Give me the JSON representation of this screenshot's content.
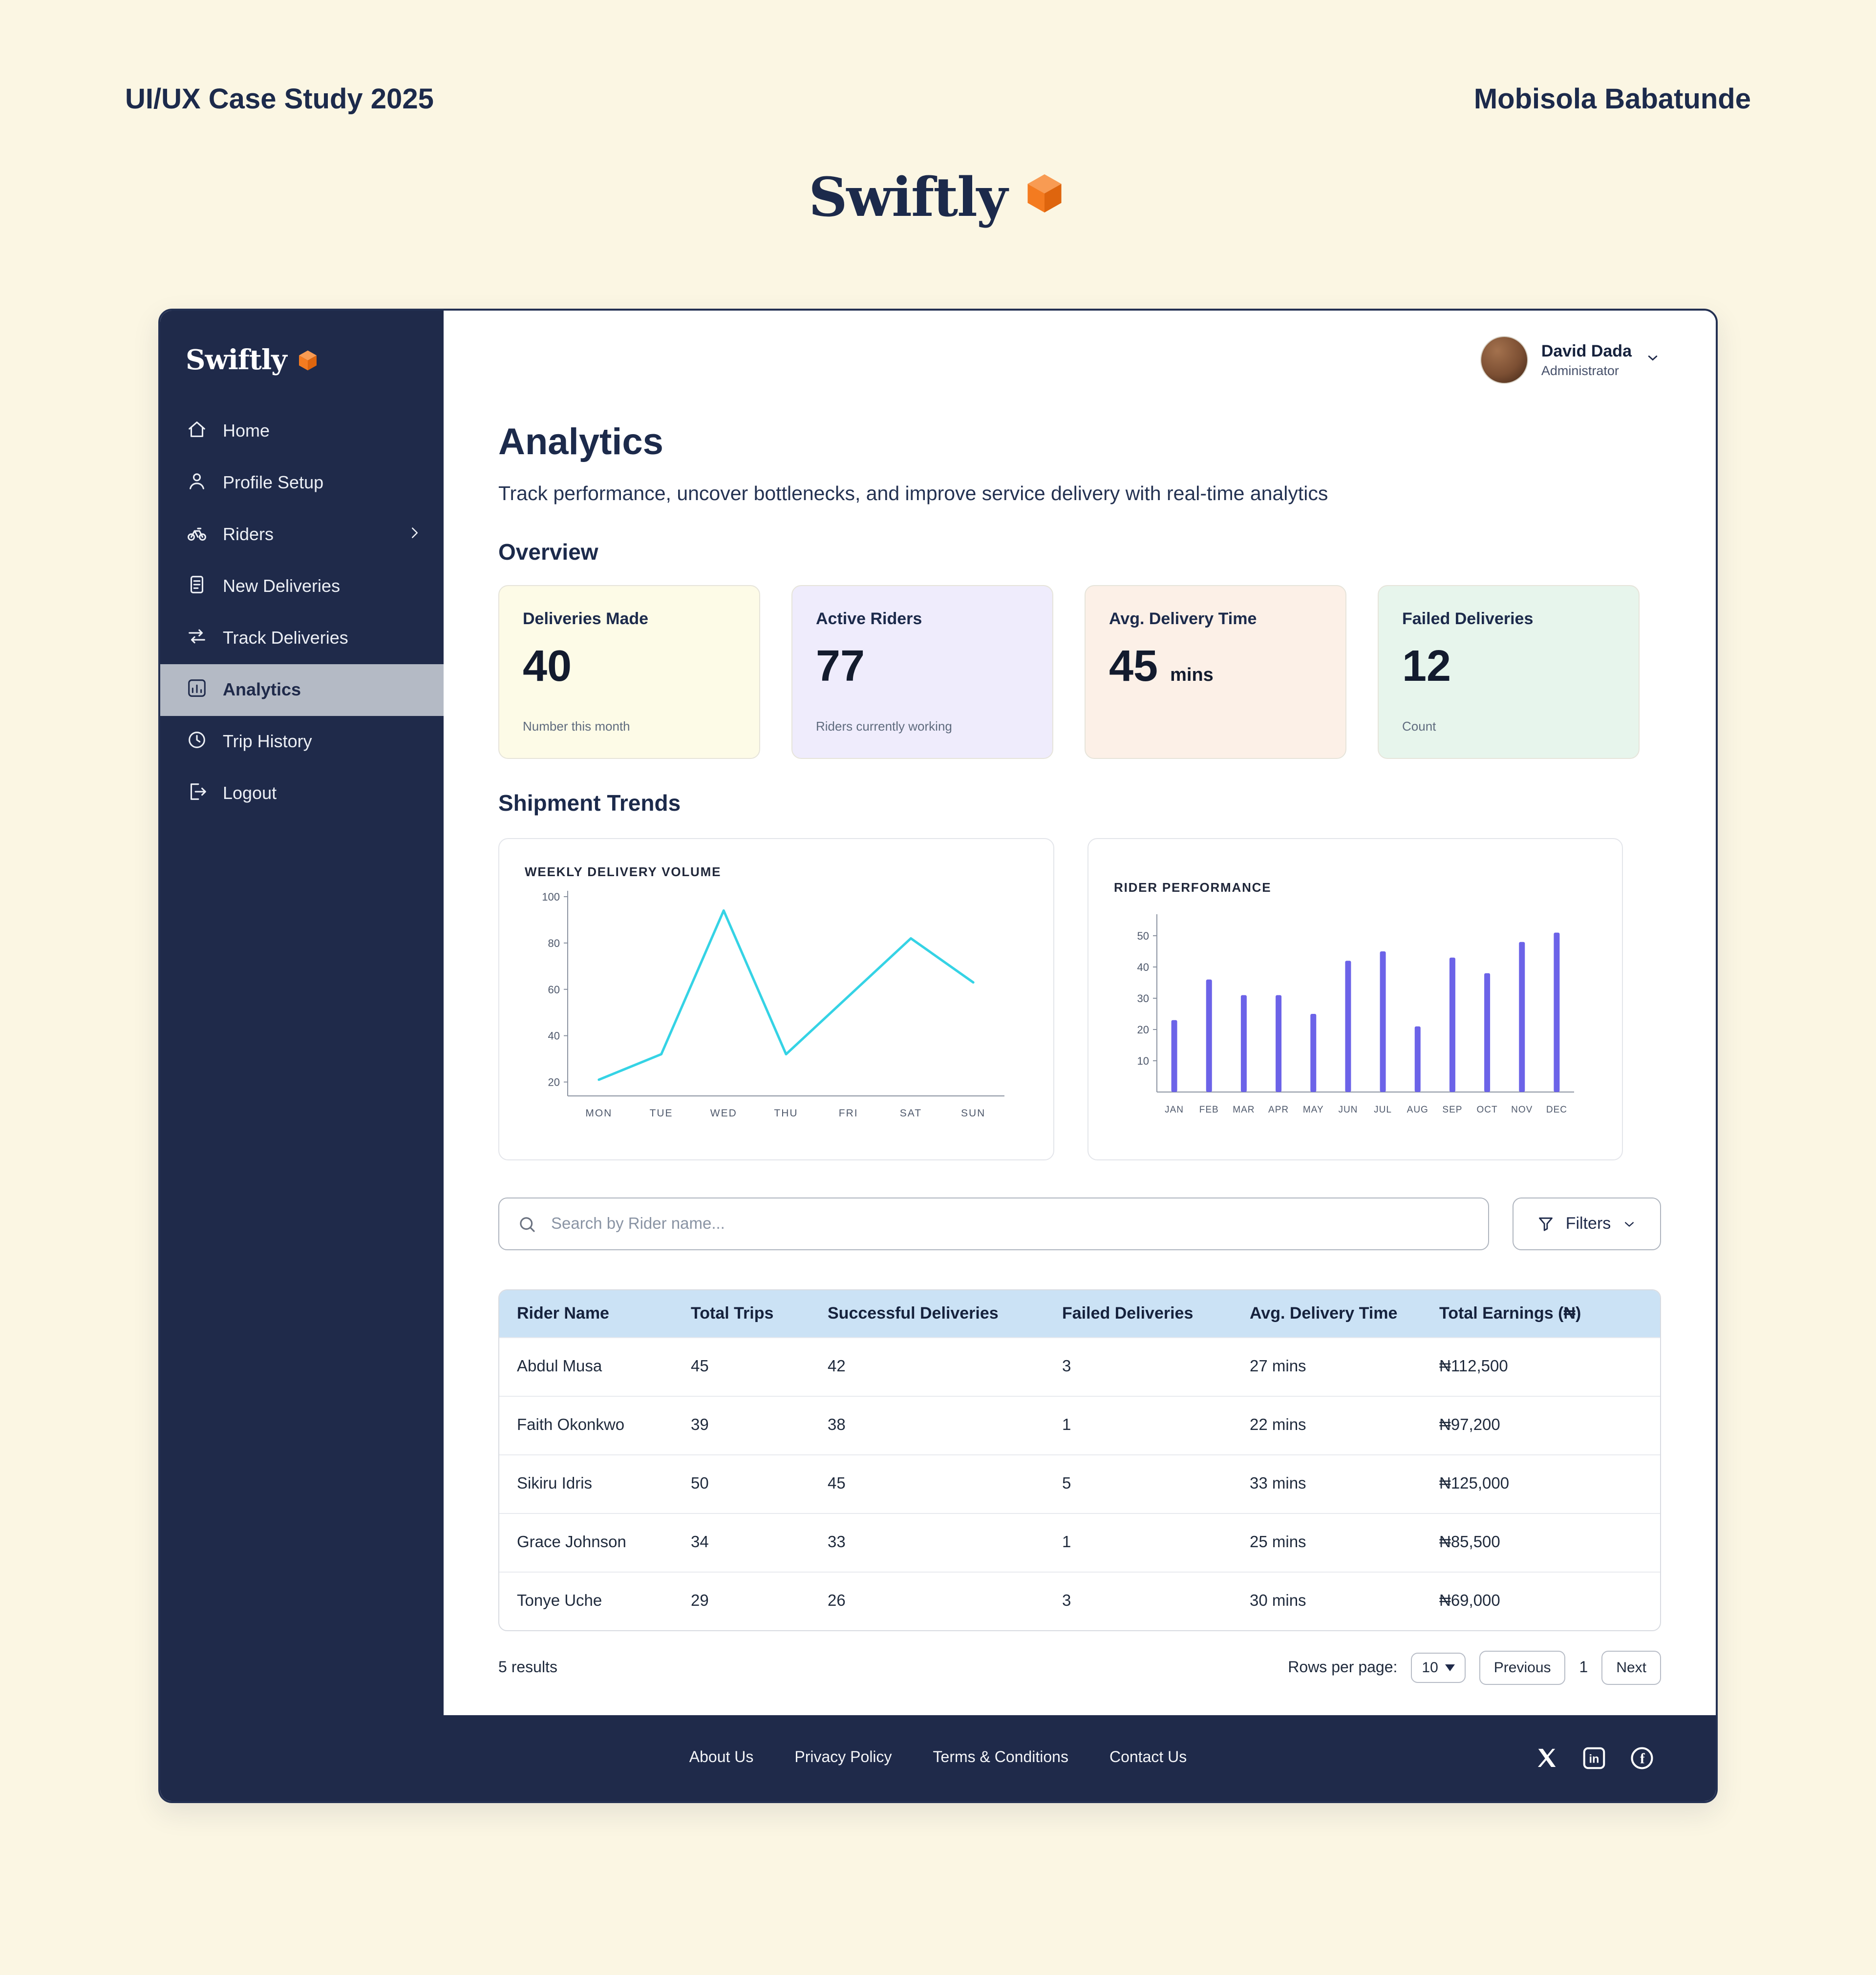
{
  "page": {
    "header_left": "UI/UX Case Study 2025",
    "header_right": "Mobisola Babatunde",
    "brand": "Swiftly"
  },
  "colors": {
    "background": "#FBF6E3",
    "navy": "#1F2A4A",
    "accent_orange": "#F47B20",
    "active_item_bg": "#B4BAC5",
    "table_header_bg": "#CBE2F5",
    "line_chart_color": "#35D3E5",
    "bar_chart_color": "#6C63E8"
  },
  "sidebar": {
    "brand": "Swiftly",
    "items": [
      {
        "label": "Home",
        "icon": "home-icon",
        "active": false,
        "chevron": false
      },
      {
        "label": "Profile Setup",
        "icon": "person-icon",
        "active": false,
        "chevron": false
      },
      {
        "label": "Riders",
        "icon": "bicycle-icon",
        "active": false,
        "chevron": true
      },
      {
        "label": "New Deliveries",
        "icon": "document-icon",
        "active": false,
        "chevron": false
      },
      {
        "label": "Track Deliveries",
        "icon": "transfer-icon",
        "active": false,
        "chevron": false
      },
      {
        "label": "Analytics",
        "icon": "analytics-chart-icon",
        "active": true,
        "chevron": false
      },
      {
        "label": "Trip History",
        "icon": "clock-icon",
        "active": false,
        "chevron": false
      },
      {
        "label": "Logout",
        "icon": "logout-icon",
        "active": false,
        "chevron": false
      }
    ]
  },
  "user": {
    "name": "David Dada",
    "role": "Administrator"
  },
  "main": {
    "title": "Analytics",
    "subtitle": "Track performance, uncover bottlenecks, and improve service delivery with real-time analytics",
    "overview_heading": "Overview",
    "trends_heading": "Shipment Trends",
    "cards": [
      {
        "label": "Deliveries Made",
        "value": "40",
        "unit": "",
        "caption": "Number this month",
        "bg": "#FDFBE7"
      },
      {
        "label": "Active Riders",
        "value": "77",
        "unit": "",
        "caption": "Riders currently working",
        "bg": "#EFECFC"
      },
      {
        "label": "Avg. Delivery Time",
        "value": "45",
        "unit": "mins",
        "caption": "",
        "bg": "#FCF0E7"
      },
      {
        "label": "Failed Deliveries",
        "value": "12",
        "unit": "",
        "caption": "Count",
        "bg": "#E7F5EC"
      }
    ]
  },
  "chart_data": [
    {
      "type": "line",
      "title": "WEEKLY DELIVERY VOLUME",
      "categories": [
        "MON",
        "TUE",
        "WED",
        "THU",
        "FRI",
        "SAT",
        "SUN"
      ],
      "values": [
        21,
        32,
        94,
        32,
        57,
        82,
        63
      ],
      "xlabel": "",
      "ylabel": "",
      "yticks": [
        20,
        40,
        60,
        80,
        100
      ],
      "ylim": [
        14,
        100
      ],
      "grid": false,
      "legend": false,
      "line_color": "#35D3E5"
    },
    {
      "type": "bar",
      "title": "RIDER PERFORMANCE",
      "categories": [
        "JAN",
        "FEB",
        "MAR",
        "APR",
        "MAY",
        "JUN",
        "JUL",
        "AUG",
        "SEP",
        "OCT",
        "NOV",
        "DEC"
      ],
      "values": [
        23,
        36,
        31,
        31,
        25,
        42,
        45,
        21,
        43,
        38,
        48,
        51
      ],
      "xlabel": "",
      "ylabel": "",
      "yticks": [
        10,
        20,
        30,
        40,
        50
      ],
      "ylim": [
        0,
        55
      ],
      "grid": false,
      "legend": false,
      "bar_color": "#6C63E8"
    }
  ],
  "search": {
    "placeholder": "Search by Rider name...",
    "filters_label": "Filters"
  },
  "table": {
    "columns": [
      "Rider Name",
      "Total Trips",
      "Successful Deliveries",
      "Failed Deliveries",
      "Avg. Delivery Time",
      "Total Earnings (₦)"
    ],
    "rows": [
      [
        "Abdul Musa",
        "45",
        "42",
        "3",
        "27 mins",
        "₦112,500"
      ],
      [
        "Faith Okonkwo",
        "39",
        "38",
        "1",
        "22 mins",
        "₦97,200"
      ],
      [
        "Sikiru Idris",
        "50",
        "45",
        "5",
        "33 mins",
        "₦125,000"
      ],
      [
        "Grace Johnson",
        "34",
        "33",
        "1",
        "25 mins",
        "₦85,500"
      ],
      [
        "Tonye Uche",
        "29",
        "26",
        "3",
        "30 mins",
        "₦69,000"
      ]
    ],
    "results_text": "5 results",
    "rows_per_page_label": "Rows per page:",
    "rows_per_page_value": "10",
    "prev_label": "Previous",
    "page_number": "1",
    "next_label": "Next"
  },
  "footer": {
    "links": [
      "About Us",
      "Privacy Policy",
      "Terms & Conditions",
      "Contact Us"
    ],
    "social": [
      "x-icon",
      "linkedin-icon",
      "facebook-icon"
    ]
  }
}
